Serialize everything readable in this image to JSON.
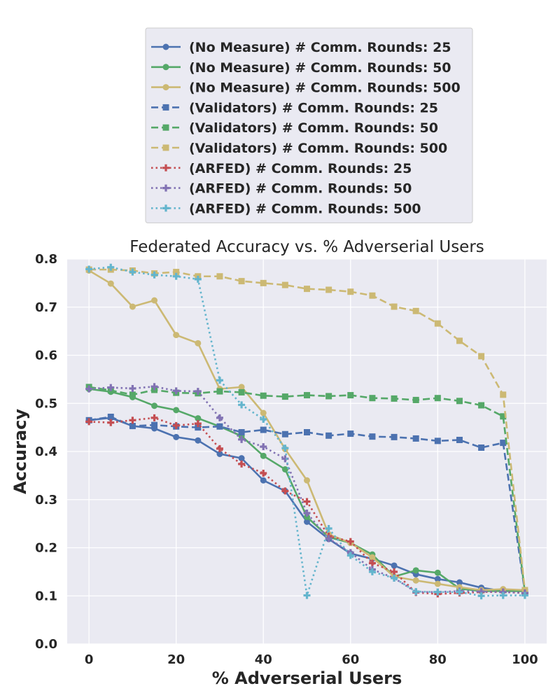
{
  "chart_data": {
    "type": "line",
    "title": "Federated Accuracy vs. % Adverserial Users",
    "xlabel": "% Adverserial Users",
    "ylabel": "Accuracy",
    "xlim": [
      -5,
      105
    ],
    "ylim": [
      0.0,
      0.8
    ],
    "xticks": [
      0,
      20,
      40,
      60,
      80,
      100
    ],
    "yticks": [
      0.0,
      0.1,
      0.2,
      0.3,
      0.4,
      0.5,
      0.6,
      0.7,
      0.8
    ],
    "grid": true,
    "legend_position": "above plot",
    "x": [
      0,
      5,
      10,
      15,
      20,
      25,
      30,
      35,
      40,
      45,
      50,
      55,
      60,
      65,
      70,
      75,
      80,
      85,
      90,
      95,
      100
    ],
    "series": [
      {
        "name": "(No Measure) # Comm. Rounds: 25",
        "color": "#4c72b0",
        "linestyle": "solid",
        "marker": "circle",
        "values": [
          0.465,
          0.47,
          0.453,
          0.448,
          0.43,
          0.423,
          0.395,
          0.386,
          0.34,
          0.318,
          0.254,
          0.218,
          0.188,
          0.177,
          0.163,
          0.145,
          0.135,
          0.128,
          0.117,
          0.11,
          0.11
        ]
      },
      {
        "name": "(No Measure) # Comm. Rounds: 50",
        "color": "#55a868",
        "linestyle": "solid",
        "marker": "circle",
        "values": [
          0.53,
          0.524,
          0.513,
          0.495,
          0.486,
          0.469,
          0.452,
          0.432,
          0.391,
          0.363,
          0.264,
          0.222,
          0.21,
          0.186,
          0.14,
          0.153,
          0.148,
          0.115,
          0.11,
          0.11,
          0.11
        ]
      },
      {
        "name": "(No Measure) # Comm. Rounds: 500",
        "color": "#ccb974",
        "linestyle": "solid",
        "marker": "circle",
        "values": [
          0.776,
          0.749,
          0.701,
          0.714,
          0.642,
          0.625,
          0.53,
          0.534,
          0.48,
          0.405,
          0.34,
          0.228,
          0.21,
          0.18,
          0.14,
          0.132,
          0.125,
          0.118,
          0.112,
          0.114,
          0.112
        ]
      },
      {
        "name": "(Validators) # Comm. Rounds: 25",
        "color": "#4c72b0",
        "linestyle": "dashed",
        "marker": "square",
        "values": [
          0.465,
          0.472,
          0.453,
          0.455,
          0.452,
          0.45,
          0.452,
          0.44,
          0.445,
          0.436,
          0.44,
          0.433,
          0.437,
          0.431,
          0.43,
          0.427,
          0.422,
          0.424,
          0.408,
          0.418,
          0.108
        ]
      },
      {
        "name": "(Validators) # Comm. Rounds: 50",
        "color": "#55a868",
        "linestyle": "dashed",
        "marker": "square",
        "values": [
          0.534,
          0.527,
          0.518,
          0.528,
          0.522,
          0.521,
          0.525,
          0.523,
          0.516,
          0.514,
          0.517,
          0.515,
          0.517,
          0.511,
          0.51,
          0.507,
          0.511,
          0.505,
          0.496,
          0.473,
          0.108
        ]
      },
      {
        "name": "(Validators) # Comm. Rounds: 500",
        "color": "#ccb974",
        "linestyle": "dashed",
        "marker": "square",
        "values": [
          0.778,
          0.778,
          0.776,
          0.77,
          0.773,
          0.764,
          0.764,
          0.754,
          0.75,
          0.746,
          0.738,
          0.736,
          0.732,
          0.724,
          0.701,
          0.692,
          0.666,
          0.63,
          0.598,
          0.518,
          0.112
        ]
      },
      {
        "name": "(ARFED) # Comm. Rounds: 25",
        "color": "#c44e52",
        "linestyle": "dotted",
        "marker": "plus",
        "values": [
          0.462,
          0.46,
          0.465,
          0.47,
          0.454,
          0.458,
          0.406,
          0.374,
          0.355,
          0.318,
          0.296,
          0.224,
          0.213,
          0.168,
          0.15,
          0.107,
          0.104,
          0.106,
          0.108,
          0.108,
          0.106
        ]
      },
      {
        "name": "(ARFED) # Comm. Rounds: 50",
        "color": "#8172b3",
        "linestyle": "dotted",
        "marker": "plus",
        "values": [
          0.53,
          0.533,
          0.531,
          0.535,
          0.526,
          0.525,
          0.47,
          0.425,
          0.41,
          0.385,
          0.272,
          0.219,
          0.19,
          0.155,
          0.137,
          0.108,
          0.108,
          0.11,
          0.109,
          0.108,
          0.106
        ]
      },
      {
        "name": "(ARFED) # Comm. Rounds: 500",
        "color": "#64b5cd",
        "linestyle": "dotted",
        "marker": "plus",
        "values": [
          0.779,
          0.783,
          0.773,
          0.767,
          0.764,
          0.758,
          0.548,
          0.497,
          0.467,
          0.407,
          0.101,
          0.24,
          0.184,
          0.15,
          0.137,
          0.109,
          0.108,
          0.108,
          0.1,
          0.101,
          0.101
        ]
      }
    ]
  }
}
